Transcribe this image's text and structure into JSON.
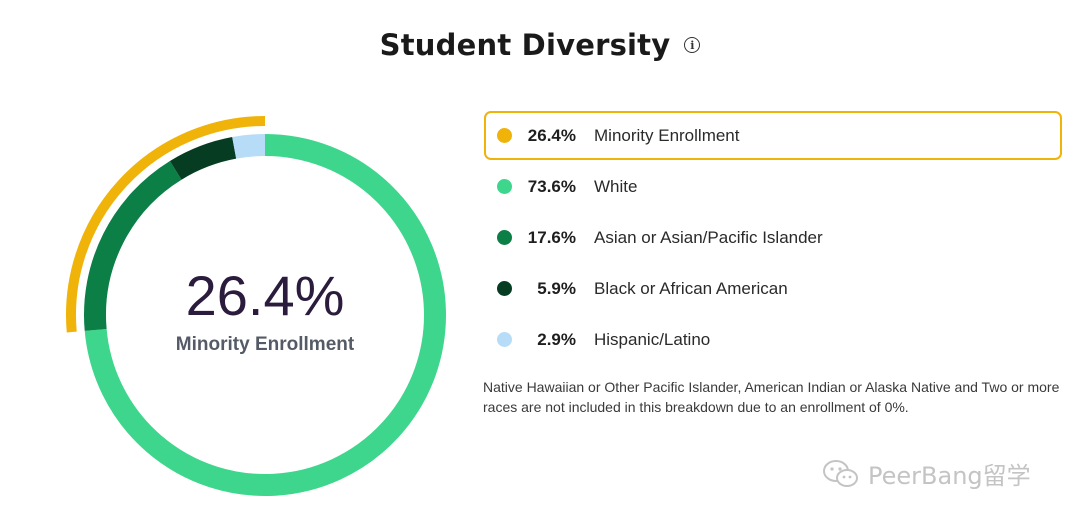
{
  "title": "Student Diversity",
  "info_icon": "info-icon",
  "center": {
    "value": "26.4%",
    "label": "Minority Enrollment"
  },
  "colors": {
    "minority": "#f0b30a",
    "white": "#3dd68c",
    "asian": "#0b7f45",
    "black": "#063d22",
    "hispanic": "#b7dcf7"
  },
  "legend": [
    {
      "pct": "26.4%",
      "label": "Minority Enrollment",
      "color": "#f0b30a",
      "highlighted": true
    },
    {
      "pct": "73.6%",
      "label": "White",
      "color": "#3dd68c",
      "highlighted": false
    },
    {
      "pct": "17.6%",
      "label": "Asian or Asian/Pacific Islander",
      "color": "#0b7f45",
      "highlighted": false
    },
    {
      "pct": "5.9%",
      "label": "Black or African American",
      "color": "#063d22",
      "highlighted": false
    },
    {
      "pct": "2.9%",
      "label": "Hispanic/Latino",
      "color": "#b7dcf7",
      "highlighted": false
    }
  ],
  "footnote": "Native Hawaiian or Other Pacific Islander, American Indian or Alaska Native and Two or more races are not included in this breakdown due to an enrollment of 0%.",
  "watermark": "PeerBang留学",
  "chart_data": {
    "type": "pie",
    "style": "donut",
    "categories": [
      "White",
      "Asian or Asian/Pacific Islander",
      "Black or African American",
      "Hispanic/Latino"
    ],
    "values": [
      73.6,
      17.6,
      5.9,
      2.9
    ],
    "colors": [
      "#3dd68c",
      "#0b7f45",
      "#063d22",
      "#b7dcf7"
    ],
    "highlight_arc": {
      "name": "Minority Enrollment",
      "value": 26.4,
      "color": "#f0b30a"
    },
    "center_text": "26.4%",
    "center_label": "Minority Enrollment",
    "legend_position": "right",
    "title": "Student Diversity"
  }
}
